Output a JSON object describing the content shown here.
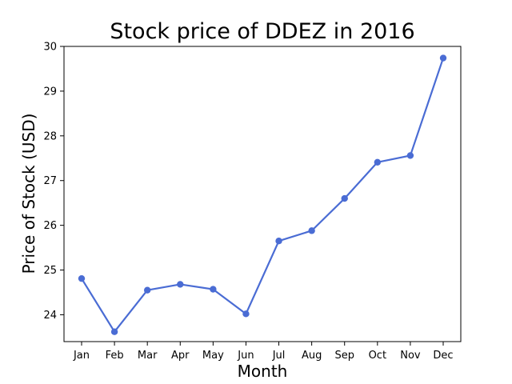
{
  "chart_data": {
    "type": "line",
    "title": "Stock price of DDEZ in 2016",
    "xlabel": "Month",
    "ylabel": "Price of Stock (USD)",
    "categories": [
      "Jan",
      "Feb",
      "Mar",
      "Apr",
      "May",
      "Jun",
      "Jul",
      "Aug",
      "Sep",
      "Oct",
      "Nov",
      "Dec"
    ],
    "series": [
      {
        "values": [
          24.81,
          23.62,
          24.55,
          24.68,
          24.57,
          24.02,
          25.65,
          25.88,
          26.6,
          27.41,
          27.56,
          29.74
        ],
        "color": "#4a6cd4"
      }
    ],
    "y_ticks": [
      24,
      25,
      26,
      27,
      28,
      29,
      30
    ],
    "ylim": [
      23.4,
      30.0
    ],
    "grid": false,
    "legend": "none"
  }
}
